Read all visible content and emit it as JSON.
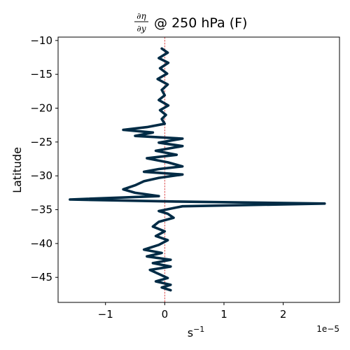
{
  "chart_data": {
    "type": "line",
    "title": {
      "frac_numerator": "∂η",
      "frac_denominator": "∂y",
      "rest": " @ 250 hPa (F)"
    },
    "xlabel": "s",
    "xlabel_superscript": "−1",
    "ylabel": "Latitude",
    "x_offset_label": "1e−5",
    "xlim": [
      -1.8,
      2.95
    ],
    "ylim": [
      -48.7,
      -9.5
    ],
    "xticks": [
      -1,
      0,
      1,
      2
    ],
    "xtick_labels": [
      "−1",
      "0",
      "1",
      "2"
    ],
    "yticks": [
      -10,
      -15,
      -20,
      -25,
      -30,
      -35,
      -40,
      -45
    ],
    "ytick_labels": [
      "−10",
      "−15",
      "−20",
      "−25",
      "−30",
      "−35",
      "−40",
      "−45"
    ],
    "x_units_note": "values in units of 1e-5 s^-1",
    "reference_line": {
      "x": 0,
      "color": "#d62728",
      "style": "dashed"
    },
    "series": [
      {
        "color": "#002b45",
        "points": [
          [
            -0.05,
            -11.2
          ],
          [
            0.05,
            -11.8
          ],
          [
            -0.1,
            -12.6
          ],
          [
            0.06,
            -13.3
          ],
          [
            -0.08,
            -14.1
          ],
          [
            0.04,
            -14.9
          ],
          [
            -0.12,
            -15.7
          ],
          [
            0.05,
            -16.5
          ],
          [
            -0.05,
            -17.3
          ],
          [
            0.0,
            -18.1
          ],
          [
            -0.1,
            -18.8
          ],
          [
            0.06,
            -19.6
          ],
          [
            -0.08,
            -20.3
          ],
          [
            0.02,
            -21.0
          ],
          [
            -0.05,
            -21.6
          ],
          [
            0.0,
            -22.3
          ],
          [
            -0.3,
            -22.8
          ],
          [
            -0.7,
            -23.2
          ],
          [
            -0.2,
            -23.6
          ],
          [
            -0.5,
            -24.1
          ],
          [
            0.3,
            -24.5
          ],
          [
            -0.1,
            -25.1
          ],
          [
            0.3,
            -25.6
          ],
          [
            -0.15,
            -26.3
          ],
          [
            0.2,
            -26.9
          ],
          [
            -0.3,
            -27.4
          ],
          [
            0.05,
            -28.0
          ],
          [
            0.3,
            -28.6
          ],
          [
            -0.1,
            -29.0
          ],
          [
            -0.35,
            -29.4
          ],
          [
            0.3,
            -29.8
          ],
          [
            -0.1,
            -30.3
          ],
          [
            -0.35,
            -30.8
          ],
          [
            -0.5,
            -31.4
          ],
          [
            -0.7,
            -32.0
          ],
          [
            -0.5,
            -32.5
          ],
          [
            -0.1,
            -33.0
          ],
          [
            -1.6,
            -33.5
          ],
          [
            0.2,
            -33.8
          ],
          [
            2.7,
            -34.1
          ],
          [
            0.3,
            -34.5
          ],
          [
            -0.1,
            -35.2
          ],
          [
            0.05,
            -35.6
          ],
          [
            0.15,
            -36.2
          ],
          [
            -0.1,
            -36.8
          ],
          [
            -0.2,
            -37.5
          ],
          [
            0.0,
            -38.2
          ],
          [
            -0.15,
            -38.9
          ],
          [
            0.05,
            -39.5
          ],
          [
            -0.1,
            -40.2
          ],
          [
            -0.35,
            -40.9
          ],
          [
            -0.05,
            -41.4
          ],
          [
            -0.3,
            -41.9
          ],
          [
            0.1,
            -42.4
          ],
          [
            -0.2,
            -42.9
          ],
          [
            0.1,
            -43.4
          ],
          [
            -0.25,
            -43.9
          ],
          [
            -0.1,
            -44.5
          ],
          [
            0.05,
            -45.1
          ],
          [
            -0.15,
            -45.6
          ],
          [
            0.1,
            -46.1
          ],
          [
            -0.05,
            -46.5
          ],
          [
            0.1,
            -46.9
          ]
        ]
      }
    ]
  }
}
